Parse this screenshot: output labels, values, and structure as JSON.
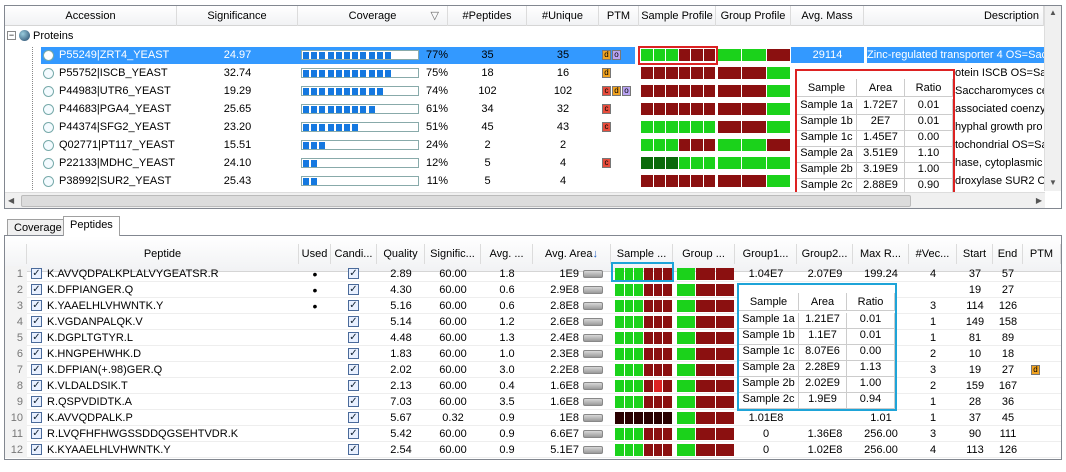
{
  "colors": {
    "dark_red": "#5a0808",
    "red": "#8b1010",
    "green": "#1bd21b",
    "dark_green": "#0a6a0a",
    "bright_green": "#22ee22",
    "highlight_red": "#dd2222",
    "highlight_blue": "#1ea4d8",
    "ptm_c": "#e74c3c",
    "ptm_d": "#f1a320",
    "ptm_o": "#b9a4f2",
    "selection": "#3399ff"
  },
  "proteins": {
    "headers": [
      "Accession",
      "Significance",
      "Coverage",
      "#Peptides",
      "#Unique",
      "PTM",
      "Sample Profile",
      "Group Profile",
      "Avg. Mass",
      "Description"
    ],
    "root_label": "Proteins",
    "rows": [
      {
        "accession": "P55249|ZRT4_YEAST",
        "significance": "24.97",
        "coverage": "77%",
        "coverage_value": 0.77,
        "peptides": "35",
        "unique": "35",
        "ptm": [
          "d",
          "o"
        ],
        "avg_mass": "29114",
        "description": "Zinc-regulated transporter 4 OS=Sac",
        "selected": true,
        "sample": [
          "g",
          "g",
          "g",
          "r",
          "r",
          "r"
        ],
        "group": [
          "g",
          "g",
          "r"
        ]
      },
      {
        "accession": "P55752|ISCB_YEAST",
        "significance": "32.74",
        "coverage": "75%",
        "coverage_value": 0.75,
        "peptides": "18",
        "unique": "16",
        "ptm": [
          "d"
        ],
        "avg_mass": "",
        "description": "otein ISCB OS=Sac",
        "sample": [
          "r",
          "r",
          "r",
          "r",
          "r",
          "r"
        ],
        "group": [
          "r",
          "r",
          "g"
        ]
      },
      {
        "accession": "P44983|UTR6_YEAST",
        "significance": "19.29",
        "coverage": "74%",
        "coverage_value": 0.74,
        "peptides": "102",
        "unique": "102",
        "ptm": [
          "c",
          "d",
          "o"
        ],
        "avg_mass": "",
        "description": "Saccharomyces ce",
        "sample": [
          "r",
          "r",
          "r",
          "r",
          "r",
          "r"
        ],
        "group": [
          "r",
          "r",
          "g"
        ]
      },
      {
        "accession": "P44683|PGA4_YEAST",
        "significance": "25.65",
        "coverage": "61%",
        "coverage_value": 0.61,
        "peptides": "34",
        "unique": "32",
        "ptm": [
          "c"
        ],
        "avg_mass": "",
        "description": "associated coenzy",
        "sample": [
          "r",
          "r",
          "r",
          "r",
          "r",
          "r"
        ],
        "group": [
          "r",
          "r",
          "g"
        ]
      },
      {
        "accession": "P44374|SFG2_YEAST",
        "significance": "23.20",
        "coverage": "51%",
        "coverage_value": 0.51,
        "peptides": "45",
        "unique": "43",
        "ptm": [
          "c"
        ],
        "avg_mass": "",
        "description": "hyphal growth pro",
        "sample": [
          "g",
          "g",
          "g",
          "g",
          "g",
          "g"
        ],
        "group": [
          "r",
          "r",
          "g"
        ]
      },
      {
        "accession": "Q02771|PT117_YEAST",
        "significance": "15.51",
        "coverage": "24%",
        "coverage_value": 0.24,
        "peptides": "2",
        "unique": "2",
        "ptm": [],
        "avg_mass": "",
        "description": "tochondrial OS=Sa",
        "sample": [
          "g",
          "g",
          "g",
          "r",
          "r",
          "r"
        ],
        "group": [
          "g",
          "g",
          "r"
        ]
      },
      {
        "accession": "P22133|MDHC_YEAST",
        "significance": "24.10",
        "coverage": "12%",
        "coverage_value": 0.12,
        "peptides": "5",
        "unique": "4",
        "ptm": [
          "c"
        ],
        "avg_mass": "",
        "description": "hase, cytoplasmic",
        "sample": [
          "dg",
          "dg",
          "dg",
          "g",
          "g",
          "g"
        ],
        "group": [
          "g",
          "g",
          "g"
        ]
      },
      {
        "accession": "P38992|SUR2_YEAST",
        "significance": "25.43",
        "coverage": "11%",
        "coverage_value": 0.11,
        "peptides": "5",
        "unique": "4",
        "ptm": [],
        "avg_mass": "",
        "description": "droxylase SUR2 O",
        "sample": [
          "r",
          "r",
          "r",
          "r",
          "r",
          "r"
        ],
        "group": [
          "r",
          "r",
          "g"
        ]
      }
    ],
    "popup": {
      "headers": [
        "Sample",
        "Area",
        "Ratio"
      ],
      "rows": [
        [
          "Sample 1a",
          "1.72E7",
          "0.01"
        ],
        [
          "Sample 1b",
          "2E7",
          "0.01"
        ],
        [
          "Sample 1c",
          "1.45E7",
          "0.00"
        ],
        [
          "Sample 2a",
          "3.51E9",
          "1.10"
        ],
        [
          "Sample 2b",
          "3.19E9",
          "1.00"
        ],
        [
          "Sample 2c",
          "2.88E9",
          "0.90"
        ]
      ]
    }
  },
  "tabs": [
    "Coverage",
    "Peptides"
  ],
  "peptides": {
    "headers": [
      "Peptide",
      "Used",
      "Candi...",
      "Quality",
      "Signific...",
      "Avg. ...",
      "Avg. Area",
      "Sample ...",
      "Group ...",
      "Group1...",
      "Group2...",
      "Max R...",
      "#Vec...",
      "Start",
      "End",
      "PTM"
    ],
    "rows": [
      {
        "n": "1",
        "peptide": "K.AVVQDPALKPLALVYGEATSR.R",
        "used": "•",
        "quality": "2.89",
        "sig": "60.00",
        "avg": "1.8",
        "area": "1E9",
        "g1": "1.04E7",
        "g2": "2.07E9",
        "maxr": "199.24",
        "vec": "4",
        "start": "37",
        "end": "57",
        "ptm": "",
        "sample": [
          "g",
          "g",
          "g",
          "r",
          "r",
          "r"
        ],
        "group": [
          "g",
          "r",
          "r"
        ]
      },
      {
        "n": "2",
        "peptide": "K.DFPIANGER.Q",
        "used": "•",
        "quality": "4.30",
        "sig": "60.00",
        "avg": "0.6",
        "area": "2.9E8",
        "g1": "",
        "g2": "",
        "maxr": "",
        "vec": "",
        "start": "19",
        "end": "27",
        "ptm": "",
        "sample": [
          "g",
          "g",
          "g",
          "r",
          "r",
          "r"
        ],
        "group": [
          "g",
          "r",
          "r"
        ]
      },
      {
        "n": "3",
        "peptide": "K.YAAELHLVHWNTK.Y",
        "used": "•",
        "quality": "5.16",
        "sig": "60.00",
        "avg": "0.6",
        "area": "2.8E8",
        "g1": "",
        "g2": "",
        "maxr": "",
        "vec": "3",
        "start": "114",
        "end": "126",
        "ptm": "",
        "sample": [
          "g",
          "g",
          "g",
          "r",
          "r",
          "r"
        ],
        "group": [
          "g",
          "r",
          "r"
        ]
      },
      {
        "n": "4",
        "peptide": "K.VGDANPALQK.V",
        "used": "",
        "quality": "5.14",
        "sig": "60.00",
        "avg": "1.2",
        "area": "2.6E8",
        "g1": "",
        "g2": "",
        "maxr": "",
        "vec": "1",
        "start": "149",
        "end": "158",
        "ptm": "",
        "sample": [
          "g",
          "g",
          "g",
          "r",
          "r",
          "r"
        ],
        "group": [
          "g",
          "r",
          "r"
        ]
      },
      {
        "n": "5",
        "peptide": "K.DGPLTGTYR.L",
        "used": "",
        "quality": "4.48",
        "sig": "60.00",
        "avg": "1.3",
        "area": "2.4E8",
        "g1": "",
        "g2": "",
        "maxr": "",
        "vec": "1",
        "start": "81",
        "end": "89",
        "ptm": "",
        "sample": [
          "g",
          "g",
          "g",
          "r",
          "r",
          "r"
        ],
        "group": [
          "g",
          "r",
          "r"
        ]
      },
      {
        "n": "6",
        "peptide": "K.HNGPEHWHK.D",
        "used": "",
        "quality": "1.83",
        "sig": "60.00",
        "avg": "1.0",
        "area": "2.3E8",
        "g1": "",
        "g2": "",
        "maxr": "",
        "vec": "2",
        "start": "10",
        "end": "18",
        "ptm": "",
        "sample": [
          "g",
          "g",
          "g",
          "r",
          "r",
          "r"
        ],
        "group": [
          "g",
          "r",
          "r"
        ]
      },
      {
        "n": "7",
        "peptide": "K.DFPIAN(+.98)GER.Q",
        "used": "",
        "quality": "2.02",
        "sig": "60.00",
        "avg": "3.0",
        "area": "2.2E8",
        "g1": "",
        "g2": "",
        "maxr": "",
        "vec": "3",
        "start": "19",
        "end": "27",
        "ptm": "d",
        "sample": [
          "g",
          "g",
          "g",
          "r",
          "r",
          "r"
        ],
        "group": [
          "g",
          "r",
          "r"
        ]
      },
      {
        "n": "8",
        "peptide": "K.VLDALDSIK.T",
        "used": "",
        "quality": "2.13",
        "sig": "60.00",
        "avg": "0.4",
        "area": "1.6E8",
        "g1": "",
        "g2": "",
        "maxr": "",
        "vec": "2",
        "start": "159",
        "end": "167",
        "ptm": "",
        "sample": [
          "g",
          "g",
          "g",
          "r",
          "rb",
          "r"
        ],
        "group": [
          "g",
          "r",
          "r"
        ]
      },
      {
        "n": "9",
        "peptide": "R.QSPVDIDTK.A",
        "used": "",
        "quality": "7.03",
        "sig": "60.00",
        "avg": "3.5",
        "area": "1.6E8",
        "g1": "",
        "g2": "",
        "maxr": "",
        "vec": "1",
        "start": "28",
        "end": "36",
        "ptm": "",
        "sample": [
          "g",
          "g",
          "g",
          "r",
          "r",
          "r"
        ],
        "group": [
          "g",
          "r",
          "r"
        ]
      },
      {
        "n": "10",
        "peptide": "K.AVVQDPALK.P",
        "used": "",
        "quality": "5.67",
        "sig": "0.32",
        "avg": "0.9",
        "area": "1E8",
        "g1": "1.01E8",
        "g2": "",
        "maxr": "1.01",
        "vec": "1",
        "start": "37",
        "end": "45",
        "ptm": "",
        "sample": [
          "k",
          "k",
          "k",
          "k",
          "k",
          "k"
        ],
        "group": [
          "g",
          "r",
          "r"
        ]
      },
      {
        "n": "11",
        "peptide": "R.LVQFHFHWGSSDDQGSEHTVDR.K",
        "used": "",
        "quality": "5.42",
        "sig": "60.00",
        "avg": "0.9",
        "area": "6.6E7",
        "g1": "0",
        "g2": "1.36E8",
        "maxr": "256.00",
        "vec": "3",
        "start": "90",
        "end": "111",
        "ptm": "",
        "sample": [
          "g",
          "g",
          "g",
          "r",
          "r",
          "r"
        ],
        "group": [
          "g",
          "r",
          "r"
        ]
      },
      {
        "n": "12",
        "peptide": "K.KYAAELHLVHWNTK.Y",
        "used": "",
        "quality": "2.54",
        "sig": "60.00",
        "avg": "0.9",
        "area": "5.1E7",
        "g1": "0",
        "g2": "1.02E8",
        "maxr": "256.00",
        "vec": "4",
        "start": "113",
        "end": "126",
        "ptm": "",
        "sample": [
          "g",
          "g",
          "g",
          "r",
          "r",
          "r"
        ],
        "group": [
          "g",
          "r",
          "r"
        ]
      }
    ],
    "popup": {
      "headers": [
        "Sample",
        "Area",
        "Ratio"
      ],
      "rows": [
        [
          "Sample 1a",
          "1.21E7",
          "0.01"
        ],
        [
          "Sample 1b",
          "1.1E7",
          "0.01"
        ],
        [
          "Sample 1c",
          "8.07E6",
          "0.00"
        ],
        [
          "Sample 2a",
          "2.28E9",
          "1.13"
        ],
        [
          "Sample 2b",
          "2.02E9",
          "1.00"
        ],
        [
          "Sample 2c",
          "1.9E9",
          "0.94"
        ]
      ]
    }
  }
}
